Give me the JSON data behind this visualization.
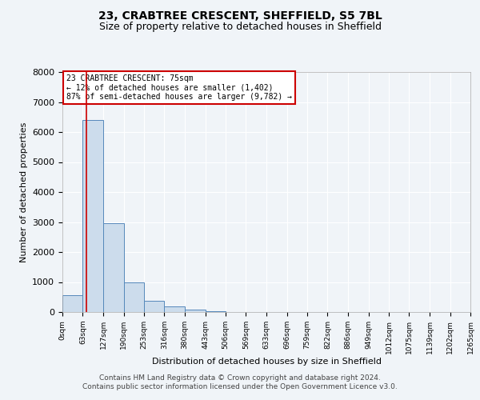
{
  "title": "23, CRABTREE CRESCENT, SHEFFIELD, S5 7BL",
  "subtitle": "Size of property relative to detached houses in Sheffield",
  "xlabel": "Distribution of detached houses by size in Sheffield",
  "ylabel": "Number of detached properties",
  "bin_edges": [
    0,
    63,
    127,
    190,
    253,
    316,
    380,
    443,
    506,
    569,
    633,
    696,
    759,
    822,
    886,
    949,
    1012,
    1075,
    1139,
    1202,
    1265
  ],
  "bin_labels": [
    "0sqm",
    "63sqm",
    "127sqm",
    "190sqm",
    "253sqm",
    "316sqm",
    "380sqm",
    "443sqm",
    "506sqm",
    "569sqm",
    "633sqm",
    "696sqm",
    "759sqm",
    "822sqm",
    "886sqm",
    "949sqm",
    "1012sqm",
    "1075sqm",
    "1139sqm",
    "1202sqm",
    "1265sqm"
  ],
  "counts": [
    550,
    6400,
    2950,
    975,
    375,
    175,
    75,
    25,
    0,
    0,
    0,
    0,
    0,
    0,
    0,
    0,
    0,
    0,
    0,
    0
  ],
  "bar_color": "#ccdcec",
  "bar_edge_color": "#5588bb",
  "bar_edge_width": 0.7,
  "property_line_x": 75,
  "property_line_color": "#cc0000",
  "ylim": [
    0,
    8000
  ],
  "yticks": [
    0,
    1000,
    2000,
    3000,
    4000,
    5000,
    6000,
    7000,
    8000
  ],
  "annotation_title": "23 CRABTREE CRESCENT: 75sqm",
  "annotation_line1": "← 12% of detached houses are smaller (1,402)",
  "annotation_line2": "87% of semi-detached houses are larger (9,782) →",
  "annotation_box_color": "#ffffff",
  "annotation_box_edge_color": "#cc0000",
  "footer_line1": "Contains HM Land Registry data © Crown copyright and database right 2024.",
  "footer_line2": "Contains public sector information licensed under the Open Government Licence v3.0.",
  "background_color": "#f0f4f8",
  "plot_bg_color": "#f0f4f8",
  "grid_color": "#ffffff",
  "title_fontsize": 10,
  "subtitle_fontsize": 9,
  "footer_fontsize": 6.5
}
